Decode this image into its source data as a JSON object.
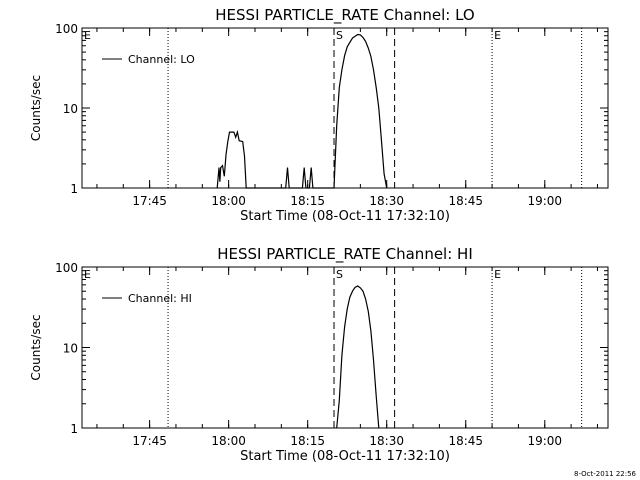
{
  "chart_data": [
    {
      "type": "line",
      "title": "HESSI PARTICLE_RATE Channel: LO",
      "xlabel": "Start Time (08-Oct-11 17:32:10)",
      "ylabel": "Counts/sec",
      "y_scale": "log",
      "ylim": [
        1,
        100
      ],
      "y_ticks": [
        1,
        10,
        100
      ],
      "y_tick_labels": [
        "1",
        "10",
        "100"
      ],
      "xlim": [
        "17:32:10",
        "19:12:00"
      ],
      "x_ticks": [
        "17:45",
        "18:00",
        "18:15",
        "18:30",
        "18:45",
        "19:00"
      ],
      "legend": {
        "label": "Channel: LO",
        "position": "top-left"
      },
      "markers": [
        {
          "time": "17:32:10",
          "style": "dotted",
          "label": "E"
        },
        {
          "time": "17:48:30",
          "style": "dotted",
          "label": ""
        },
        {
          "time": "18:20:00",
          "style": "dashed",
          "label": "S"
        },
        {
          "time": "18:31:30",
          "style": "dashed",
          "label": ""
        },
        {
          "time": "18:50:00",
          "style": "dotted",
          "label": "E"
        },
        {
          "time": "19:07:00",
          "style": "dotted",
          "label": ""
        }
      ],
      "series": [
        {
          "name": "Channel: LO",
          "points": [
            [
              "17:57:50",
              1
            ],
            [
              "17:58:10",
              1.8
            ],
            [
              "17:58:20",
              1.2
            ],
            [
              "17:58:30",
              1.8
            ],
            [
              "17:58:50",
              1.9
            ],
            [
              "17:59:10",
              1.4
            ],
            [
              "17:59:30",
              2.6
            ],
            [
              "17:59:50",
              3.8
            ],
            [
              "18:00:10",
              5.0
            ],
            [
              "18:01:00",
              5.0
            ],
            [
              "18:01:20",
              4.3
            ],
            [
              "18:01:40",
              5.0
            ],
            [
              "18:02:00",
              3.9
            ],
            [
              "18:02:40",
              3.8
            ],
            [
              "18:03:00",
              2.5
            ],
            [
              "18:03:20",
              1
            ],
            [
              "18:10:50",
              1
            ],
            [
              "18:11:10",
              1.8
            ],
            [
              "18:11:30",
              1
            ],
            [
              "18:14:00",
              1
            ],
            [
              "18:14:20",
              1.8
            ],
            [
              "18:14:40",
              1
            ],
            [
              "18:15:20",
              1
            ],
            [
              "18:15:40",
              1.8
            ],
            [
              "18:16:00",
              1
            ],
            [
              "18:20:00",
              1
            ],
            [
              "18:20:30",
              6
            ],
            [
              "18:21:00",
              18
            ],
            [
              "18:21:30",
              30
            ],
            [
              "18:22:00",
              45
            ],
            [
              "18:22:30",
              58
            ],
            [
              "18:23:00",
              66
            ],
            [
              "18:23:30",
              75
            ],
            [
              "18:24:00",
              79
            ],
            [
              "18:24:30",
              83
            ],
            [
              "18:25:00",
              82
            ],
            [
              "18:25:30",
              76
            ],
            [
              "18:26:00",
              68
            ],
            [
              "18:26:30",
              56
            ],
            [
              "18:27:00",
              44
            ],
            [
              "18:27:30",
              30
            ],
            [
              "18:28:00",
              18
            ],
            [
              "18:28:30",
              10
            ],
            [
              "18:29:00",
              4
            ],
            [
              "18:29:30",
              1.5
            ],
            [
              "18:30:00",
              1
            ]
          ]
        }
      ]
    },
    {
      "type": "line",
      "title": "HESSI PARTICLE_RATE Channel: HI",
      "xlabel": "Start Time (08-Oct-11 17:32:10)",
      "ylabel": "Counts/sec",
      "y_scale": "log",
      "ylim": [
        1,
        100
      ],
      "y_ticks": [
        1,
        10,
        100
      ],
      "y_tick_labels": [
        "1",
        "10",
        "100"
      ],
      "xlim": [
        "17:32:10",
        "19:12:00"
      ],
      "x_ticks": [
        "17:45",
        "18:00",
        "18:15",
        "18:30",
        "18:45",
        "19:00"
      ],
      "legend": {
        "label": "Channel: HI",
        "position": "top-left"
      },
      "markers": [
        {
          "time": "17:32:10",
          "style": "dotted",
          "label": "E"
        },
        {
          "time": "17:48:30",
          "style": "dotted",
          "label": ""
        },
        {
          "time": "18:20:00",
          "style": "dashed",
          "label": "S"
        },
        {
          "time": "18:31:30",
          "style": "dashed",
          "label": ""
        },
        {
          "time": "18:50:00",
          "style": "dotted",
          "label": "E"
        },
        {
          "time": "19:07:00",
          "style": "dotted",
          "label": ""
        }
      ],
      "series": [
        {
          "name": "Channel: HI",
          "points": [
            [
              "18:20:30",
              1
            ],
            [
              "18:21:00",
              2.2
            ],
            [
              "18:21:30",
              8
            ],
            [
              "18:22:00",
              18
            ],
            [
              "18:22:30",
              30
            ],
            [
              "18:23:00",
              42
            ],
            [
              "18:23:30",
              50
            ],
            [
              "18:24:00",
              56
            ],
            [
              "18:24:30",
              58
            ],
            [
              "18:25:00",
              55
            ],
            [
              "18:25:30",
              50
            ],
            [
              "18:26:00",
              40
            ],
            [
              "18:26:30",
              28
            ],
            [
              "18:27:00",
              16
            ],
            [
              "18:27:30",
              7
            ],
            [
              "18:28:00",
              2.5
            ],
            [
              "18:28:30",
              1
            ]
          ]
        }
      ]
    }
  ],
  "footer": {
    "timestamp": "8-Oct-2011 22:56"
  }
}
